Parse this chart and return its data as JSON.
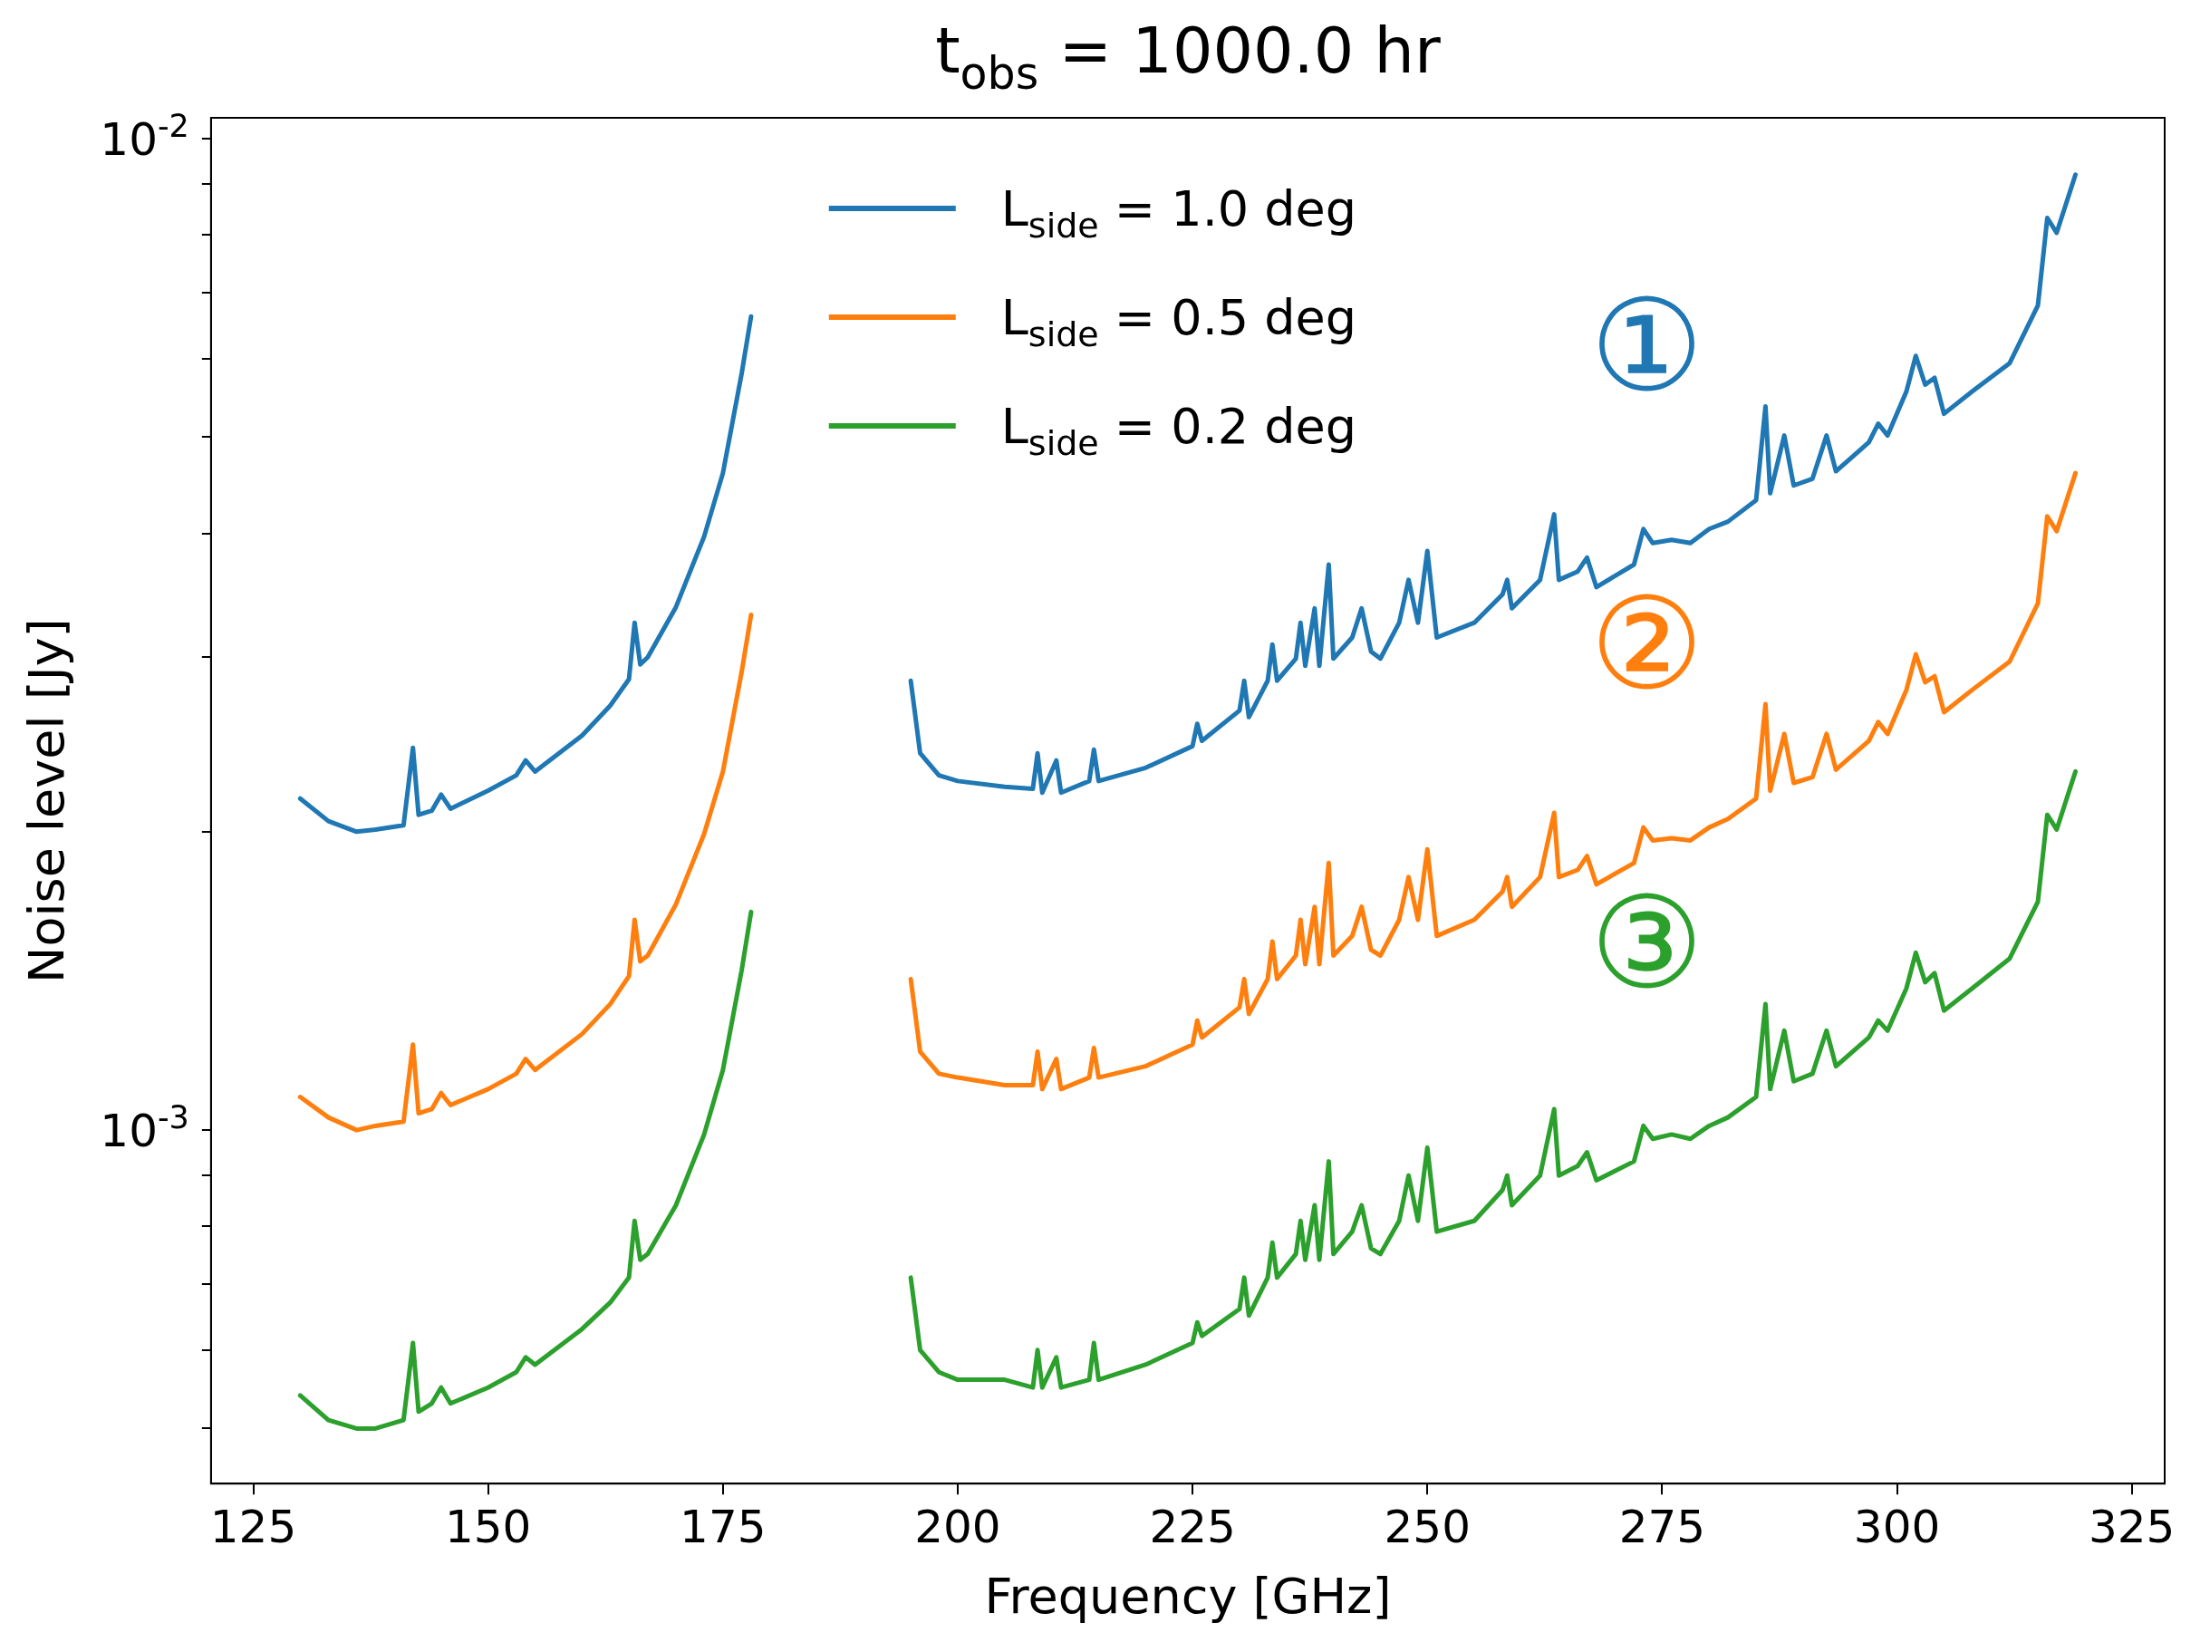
{
  "chart_data": {
    "type": "line",
    "title": "t$_{obs}$ = 1000.0 hr",
    "xlabel": "Frequency [GHz]",
    "ylabel": "Noise level [Jy]",
    "log": "y",
    "grid": false,
    "legend": "top center",
    "marker": "none",
    "line_style": "solid",
    "xlim": [
      120.5,
      328.5
    ],
    "xticks": [
      125,
      150,
      175,
      200,
      225,
      250,
      275,
      300,
      325
    ],
    "ylim": [
      0.00044,
      0.0105
    ],
    "yticks": [
      {
        "value": 0.0005,
        "label": null
      },
      {
        "value": 0.0006,
        "label": null
      },
      {
        "value": 0.0007,
        "label": null
      },
      {
        "value": 0.0008,
        "label": null
      },
      {
        "value": 0.0009,
        "label": null
      },
      {
        "value": 0.001,
        "label": "10$^{-3}$"
      },
      {
        "value": 0.002,
        "label": null
      },
      {
        "value": 0.003,
        "label": null
      },
      {
        "value": 0.004,
        "label": null
      },
      {
        "value": 0.005,
        "label": null
      },
      {
        "value": 0.006,
        "label": null
      },
      {
        "value": 0.007,
        "label": null
      },
      {
        "value": 0.008,
        "label": null
      },
      {
        "value": 0.009,
        "label": null
      },
      {
        "value": 0.01,
        "label": "10$^{-2}$"
      }
    ],
    "x": [
      130,
      133,
      136,
      138,
      141,
      142,
      142.6,
      144,
      145,
      146,
      150,
      153,
      154,
      155,
      160,
      163,
      165,
      165.6,
      166.2,
      167,
      170,
      173,
      175,
      177,
      178,
      186,
      195,
      196,
      198,
      200,
      205,
      208,
      208.5,
      209,
      210.5,
      211,
      214,
      214.5,
      215,
      220,
      225,
      225.5,
      226,
      230,
      230.5,
      231,
      233,
      233.5,
      234,
      236,
      236.5,
      237,
      238,
      238.5,
      239.5,
      240,
      242,
      243,
      244,
      245,
      247,
      248,
      249,
      250,
      251,
      255,
      258,
      258.5,
      259,
      262,
      263.5,
      264,
      266,
      267,
      268,
      272,
      273,
      274,
      276,
      278,
      280,
      282,
      285,
      286,
      286.5,
      288,
      289,
      291,
      292.5,
      293.5,
      297,
      298,
      299,
      301,
      302,
      303,
      304,
      305,
      308,
      312,
      315,
      316,
      317,
      319
    ],
    "series": [
      {
        "name": "L$_{side}$ = 1.0 deg",
        "color": "#1f77b4",
        "values": [
          0.00216,
          0.00205,
          0.002,
          0.00201,
          0.00203,
          0.00243,
          0.00208,
          0.0021,
          0.00218,
          0.00211,
          0.0022,
          0.00228,
          0.00236,
          0.0023,
          0.0025,
          0.00268,
          0.00285,
          0.00325,
          0.00295,
          0.003,
          0.00337,
          0.00397,
          0.0046,
          0.0058,
          0.00662,
          null,
          0.00284,
          0.0024,
          0.00228,
          0.00225,
          0.00222,
          0.00221,
          0.0024,
          0.00219,
          0.00236,
          0.00219,
          0.00225,
          0.00242,
          0.00225,
          0.00232,
          0.00244,
          0.00257,
          0.00247,
          0.00265,
          0.00284,
          0.00261,
          0.00284,
          0.00309,
          0.00284,
          0.00299,
          0.00325,
          0.00294,
          0.00336,
          0.00294,
          0.00372,
          0.00299,
          0.00314,
          0.00336,
          0.00304,
          0.00299,
          0.00325,
          0.00359,
          0.00325,
          0.00384,
          0.00314,
          0.00325,
          0.00347,
          0.00359,
          0.00336,
          0.00359,
          0.00418,
          0.00359,
          0.00366,
          0.00378,
          0.00353,
          0.00372,
          0.00404,
          0.00391,
          0.00394,
          0.00391,
          0.00404,
          0.00411,
          0.00432,
          0.00537,
          0.00439,
          0.00502,
          0.00447,
          0.00454,
          0.00502,
          0.00462,
          0.00494,
          0.00516,
          0.00502,
          0.00556,
          0.00604,
          0.00565,
          0.00574,
          0.00528,
          0.00556,
          0.00594,
          0.00679,
          0.00832,
          0.00804,
          0.0092
        ]
      },
      {
        "name": "L$_{side}$ = 0.5 deg",
        "color": "#ff7f0e",
        "values": [
          0.00108,
          0.00103,
          0.001,
          0.00101,
          0.00102,
          0.00122,
          0.00104,
          0.00105,
          0.00109,
          0.00106,
          0.0011,
          0.00114,
          0.00118,
          0.00115,
          0.00125,
          0.00134,
          0.00143,
          0.00163,
          0.00148,
          0.0015,
          0.00169,
          0.00199,
          0.0023,
          0.0029,
          0.00331,
          null,
          0.00142,
          0.0012,
          0.00114,
          0.00113,
          0.00111,
          0.00111,
          0.0012,
          0.0011,
          0.00118,
          0.0011,
          0.00113,
          0.00121,
          0.00113,
          0.00116,
          0.00122,
          0.00129,
          0.00124,
          0.00133,
          0.00142,
          0.00131,
          0.00142,
          0.00155,
          0.00142,
          0.0015,
          0.00163,
          0.00147,
          0.00168,
          0.00147,
          0.00186,
          0.0015,
          0.00157,
          0.00168,
          0.00152,
          0.0015,
          0.00163,
          0.0018,
          0.00163,
          0.00192,
          0.00157,
          0.00163,
          0.00174,
          0.0018,
          0.00168,
          0.0018,
          0.00209,
          0.0018,
          0.00183,
          0.00189,
          0.00177,
          0.00186,
          0.00202,
          0.00196,
          0.00197,
          0.00196,
          0.00202,
          0.00206,
          0.00216,
          0.00269,
          0.0022,
          0.00251,
          0.00224,
          0.00227,
          0.00251,
          0.00231,
          0.00247,
          0.00258,
          0.00251,
          0.00278,
          0.00302,
          0.00283,
          0.00287,
          0.00264,
          0.00278,
          0.00297,
          0.0034,
          0.00416,
          0.00402,
          0.0046
        ]
      },
      {
        "name": "L$_{side}$ = 0.2 deg",
        "color": "#2ca02c",
        "values": [
          0.00054,
          0.00051,
          0.0005,
          0.0005,
          0.00051,
          0.00061,
          0.00052,
          0.00053,
          0.00055,
          0.00053,
          0.00055,
          0.00057,
          0.00059,
          0.00058,
          0.00063,
          0.00067,
          0.00071,
          0.00081,
          0.00074,
          0.00075,
          0.00084,
          0.00099,
          0.00115,
          0.00145,
          0.00166,
          null,
          0.00071,
          0.0006,
          0.00057,
          0.00056,
          0.00056,
          0.00055,
          0.0006,
          0.00055,
          0.00059,
          0.00055,
          0.00056,
          0.00061,
          0.00056,
          0.00058,
          0.00061,
          0.00064,
          0.00062,
          0.00066,
          0.00071,
          0.00065,
          0.00071,
          0.00077,
          0.00071,
          0.00075,
          0.00081,
          0.00074,
          0.00084,
          0.00074,
          0.00093,
          0.00075,
          0.00079,
          0.00084,
          0.00076,
          0.00075,
          0.00081,
          0.0009,
          0.00081,
          0.00096,
          0.00079,
          0.00081,
          0.00087,
          0.0009,
          0.00084,
          0.0009,
          0.00105,
          0.0009,
          0.00092,
          0.00095,
          0.00089,
          0.00093,
          0.00101,
          0.00098,
          0.00099,
          0.00098,
          0.00101,
          0.00103,
          0.00108,
          0.00134,
          0.0011,
          0.00126,
          0.00112,
          0.00114,
          0.00126,
          0.00116,
          0.00124,
          0.00129,
          0.00126,
          0.00139,
          0.00151,
          0.00141,
          0.00144,
          0.00132,
          0.00139,
          0.00149,
          0.0017,
          0.00208,
          0.00201,
          0.0023
        ]
      }
    ],
    "annotations": [
      "①",
      "②",
      "③"
    ]
  }
}
